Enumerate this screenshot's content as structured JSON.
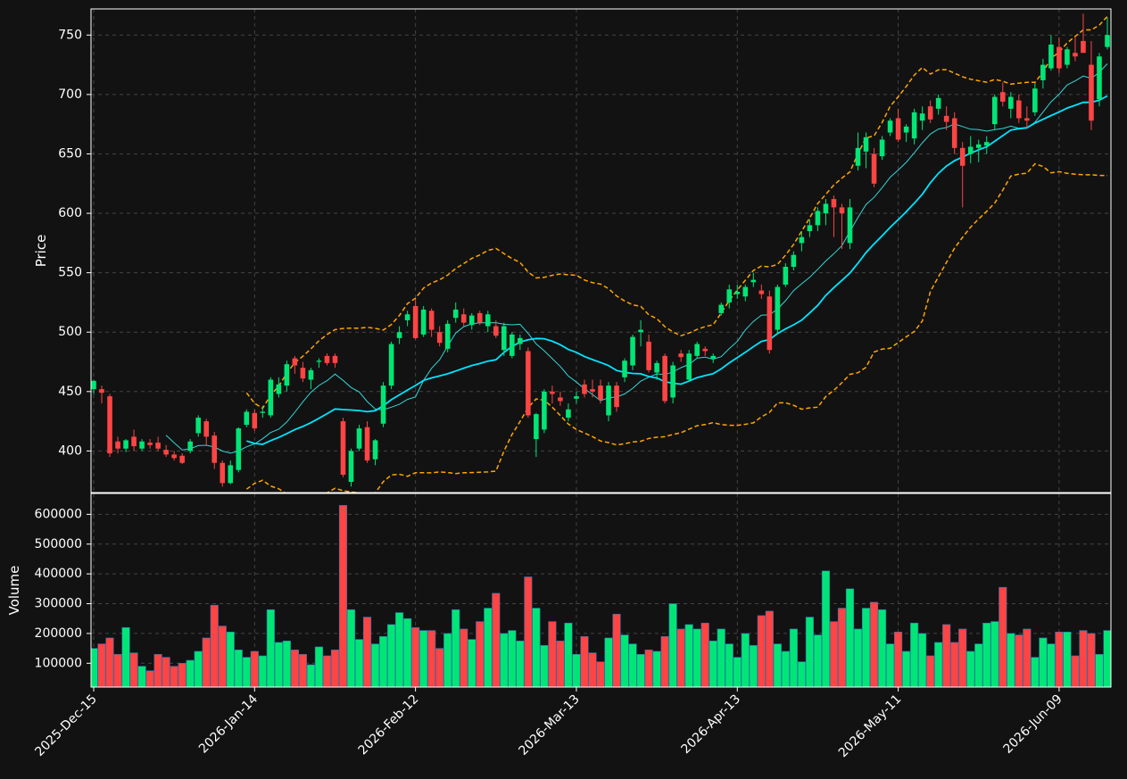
{
  "chart_data": {
    "type": "candlestick",
    "colors": {
      "background": "#121212",
      "frame": "#ffffff",
      "grid": "#444444",
      "text": "#ffffff",
      "up": "#00e676",
      "down": "#ff4444",
      "sma_fast": "#33d6d6",
      "sma_slow": "#00e5ff",
      "bollinger": "#ffa500"
    },
    "price_axis": {
      "ylabel": "Price",
      "ylim": [
        365,
        772
      ],
      "ticks": [
        400,
        450,
        500,
        550,
        600,
        650,
        700,
        750
      ]
    },
    "volume_axis": {
      "ylabel": "Volume",
      "ylim": [
        20000,
        670000
      ],
      "ticks": [
        100000,
        200000,
        300000,
        400000,
        500000,
        600000
      ]
    },
    "x_ticks": [
      {
        "label": "2025-Dec-15",
        "index": 0
      },
      {
        "label": "2026-Jan-14",
        "index": 20
      },
      {
        "label": "2026-Feb-12",
        "index": 40
      },
      {
        "label": "2026-Mar-13",
        "index": 60
      },
      {
        "label": "2026-Apr-13",
        "index": 80
      },
      {
        "label": "2026-May-11",
        "index": 100
      },
      {
        "label": "2026-Jun-09",
        "index": 120
      }
    ],
    "grid": true,
    "ohlcv": [
      [
        452,
        460,
        448,
        459,
        150000
      ],
      [
        452,
        455,
        440,
        449,
        165000
      ],
      [
        446,
        448,
        395,
        398,
        185000
      ],
      [
        408,
        412,
        398,
        402,
        130000
      ],
      [
        402,
        410,
        399,
        409,
        220000
      ],
      [
        412,
        418,
        400,
        404,
        135000
      ],
      [
        402,
        410,
        400,
        408,
        90000
      ],
      [
        407,
        410,
        402,
        405,
        75000
      ],
      [
        407,
        412,
        400,
        402,
        130000
      ],
      [
        401,
        405,
        395,
        397,
        120000
      ],
      [
        397,
        400,
        392,
        394,
        90000
      ],
      [
        396,
        398,
        389,
        390,
        100000
      ],
      [
        400,
        410,
        398,
        408,
        110000
      ],
      [
        415,
        430,
        412,
        428,
        140000
      ],
      [
        425,
        427,
        405,
        412,
        185000
      ],
      [
        413,
        416,
        385,
        390,
        295000
      ],
      [
        390,
        392,
        370,
        373,
        225000
      ],
      [
        373,
        392,
        372,
        388,
        205000
      ],
      [
        384,
        420,
        382,
        419,
        145000
      ],
      [
        422,
        435,
        420,
        433,
        120000
      ],
      [
        432,
        435,
        417,
        419,
        140000
      ],
      [
        432,
        438,
        428,
        433,
        125000
      ],
      [
        430,
        462,
        428,
        460,
        280000
      ],
      [
        448,
        462,
        445,
        456,
        170000
      ],
      [
        455,
        476,
        450,
        473,
        175000
      ],
      [
        478,
        480,
        465,
        472,
        145000
      ],
      [
        470,
        475,
        458,
        461,
        130000
      ],
      [
        460,
        470,
        452,
        468,
        95000
      ],
      [
        475,
        478,
        470,
        476,
        155000
      ],
      [
        480,
        482,
        472,
        474,
        125000
      ],
      [
        480,
        482,
        470,
        474,
        145000
      ],
      [
        425,
        428,
        378,
        380,
        630000
      ],
      [
        374,
        402,
        370,
        400,
        280000
      ],
      [
        402,
        422,
        400,
        419,
        180000
      ],
      [
        420,
        425,
        390,
        392,
        255000
      ],
      [
        393,
        410,
        388,
        409,
        165000
      ],
      [
        423,
        458,
        420,
        455,
        190000
      ],
      [
        455,
        492,
        452,
        490,
        230000
      ],
      [
        495,
        505,
        490,
        500,
        270000
      ],
      [
        510,
        518,
        505,
        515,
        250000
      ],
      [
        522,
        528,
        494,
        495,
        220000
      ],
      [
        498,
        522,
        496,
        519,
        210000
      ],
      [
        518,
        520,
        496,
        502,
        210000
      ],
      [
        500,
        505,
        488,
        491,
        150000
      ],
      [
        486,
        510,
        483,
        507,
        200000
      ],
      [
        512,
        525,
        508,
        519,
        280000
      ],
      [
        515,
        520,
        505,
        508,
        215000
      ],
      [
        506,
        516,
        502,
        514,
        180000
      ],
      [
        516,
        518,
        506,
        508,
        240000
      ],
      [
        505,
        518,
        500,
        515,
        285000
      ],
      [
        505,
        510,
        495,
        497,
        335000
      ],
      [
        485,
        508,
        480,
        505,
        200000
      ],
      [
        480,
        500,
        478,
        498,
        210000
      ],
      [
        490,
        498,
        485,
        495,
        175000
      ],
      [
        484,
        487,
        428,
        430,
        390000
      ],
      [
        410,
        432,
        395,
        431,
        285000
      ],
      [
        418,
        452,
        415,
        450,
        160000
      ],
      [
        450,
        455,
        440,
        448,
        240000
      ],
      [
        445,
        450,
        438,
        442,
        175000
      ],
      [
        428,
        440,
        425,
        435,
        235000
      ],
      [
        444,
        450,
        440,
        446,
        130000
      ],
      [
        456,
        460,
        445,
        448,
        190000
      ],
      [
        452,
        460,
        445,
        450,
        135000
      ],
      [
        455,
        460,
        440,
        443,
        105000
      ],
      [
        430,
        458,
        425,
        455,
        185000
      ],
      [
        455,
        458,
        433,
        437,
        265000
      ],
      [
        462,
        478,
        458,
        476,
        195000
      ],
      [
        472,
        498,
        468,
        496,
        165000
      ],
      [
        500,
        510,
        488,
        502,
        130000
      ],
      [
        492,
        498,
        466,
        468,
        145000
      ],
      [
        466,
        476,
        460,
        474,
        140000
      ],
      [
        480,
        482,
        440,
        442,
        190000
      ],
      [
        445,
        475,
        440,
        472,
        300000
      ],
      [
        482,
        485,
        475,
        479,
        215000
      ],
      [
        460,
        485,
        458,
        482,
        230000
      ],
      [
        480,
        492,
        478,
        490,
        215000
      ],
      [
        486,
        488,
        480,
        484,
        235000
      ],
      [
        478,
        482,
        474,
        480,
        175000
      ],
      [
        516,
        525,
        514,
        523,
        215000
      ],
      [
        525,
        540,
        520,
        536,
        165000
      ],
      [
        532,
        540,
        528,
        534,
        120000
      ],
      [
        530,
        540,
        526,
        538,
        200000
      ],
      [
        542,
        550,
        538,
        544,
        160000
      ],
      [
        535,
        540,
        528,
        532,
        260000
      ],
      [
        530,
        535,
        482,
        485,
        275000
      ],
      [
        502,
        540,
        498,
        538,
        165000
      ],
      [
        540,
        558,
        538,
        555,
        140000
      ],
      [
        555,
        568,
        552,
        565,
        215000
      ],
      [
        575,
        585,
        568,
        580,
        105000
      ],
      [
        585,
        595,
        580,
        590,
        255000
      ],
      [
        590,
        605,
        585,
        602,
        195000
      ],
      [
        600,
        612,
        590,
        608,
        410000
      ],
      [
        612,
        615,
        580,
        605,
        240000
      ],
      [
        605,
        608,
        570,
        600,
        285000
      ],
      [
        575,
        612,
        570,
        605,
        350000
      ],
      [
        640,
        668,
        636,
        655,
        215000
      ],
      [
        652,
        668,
        638,
        664,
        285000
      ],
      [
        650,
        655,
        622,
        625,
        305000
      ],
      [
        648,
        665,
        645,
        662,
        280000
      ],
      [
        668,
        680,
        665,
        678,
        165000
      ],
      [
        680,
        688,
        660,
        662,
        205000
      ],
      [
        668,
        675,
        660,
        673,
        140000
      ],
      [
        663,
        688,
        658,
        685,
        235000
      ],
      [
        678,
        690,
        670,
        684,
        200000
      ],
      [
        690,
        695,
        676,
        679,
        125000
      ],
      [
        688,
        700,
        683,
        697,
        170000
      ],
      [
        682,
        690,
        670,
        677,
        230000
      ],
      [
        680,
        685,
        650,
        655,
        170000
      ],
      [
        655,
        660,
        605,
        640,
        215000
      ],
      [
        650,
        665,
        642,
        656,
        140000
      ],
      [
        655,
        662,
        643,
        658,
        165000
      ],
      [
        657,
        665,
        650,
        660,
        235000
      ],
      [
        675,
        700,
        670,
        698,
        240000
      ],
      [
        702,
        710,
        690,
        694,
        355000
      ],
      [
        688,
        702,
        680,
        698,
        200000
      ],
      [
        695,
        700,
        676,
        680,
        195000
      ],
      [
        680,
        690,
        672,
        678,
        215000
      ],
      [
        685,
        710,
        682,
        705,
        120000
      ],
      [
        712,
        730,
        705,
        725,
        185000
      ],
      [
        722,
        750,
        720,
        742,
        165000
      ],
      [
        740,
        748,
        718,
        722,
        205000
      ],
      [
        725,
        740,
        722,
        738,
        205000
      ],
      [
        735,
        748,
        728,
        732,
        125000
      ],
      [
        745,
        768,
        740,
        735,
        210000
      ],
      [
        725,
        745,
        670,
        678,
        200000
      ],
      [
        696,
        735,
        690,
        732,
        130000
      ],
      [
        740,
        765,
        738,
        750,
        210000
      ]
    ]
  }
}
